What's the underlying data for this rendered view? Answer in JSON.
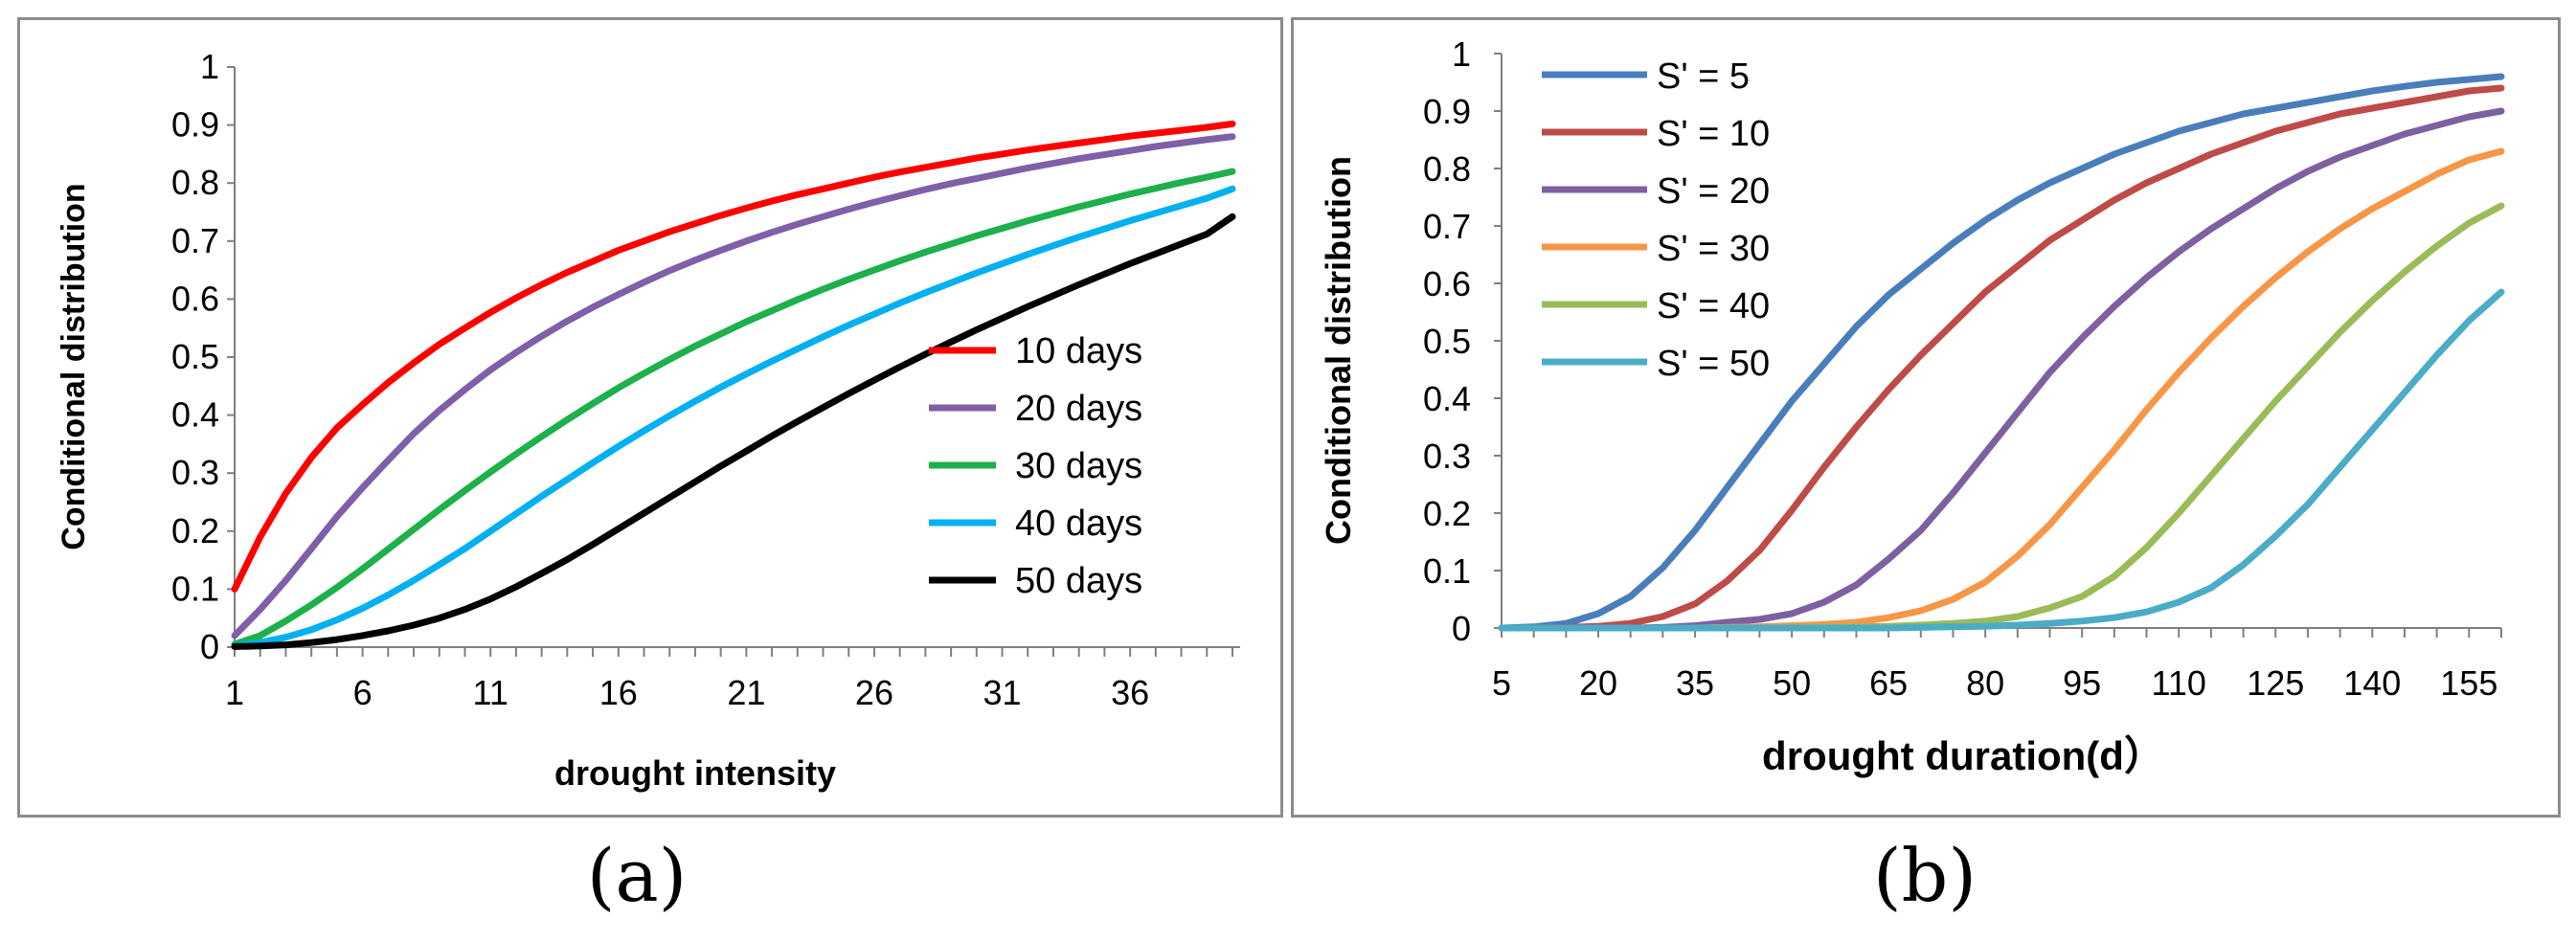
{
  "chart_data": [
    {
      "type": "line",
      "panel_label": "(a)",
      "title": "",
      "xlabel": "drought intensity",
      "ylabel": "Conditional distribution",
      "x": [
        1,
        2,
        3,
        4,
        5,
        6,
        7,
        8,
        9,
        10,
        11,
        12,
        13,
        14,
        15,
        16,
        17,
        18,
        19,
        20,
        21,
        22,
        23,
        24,
        25,
        26,
        27,
        28,
        29,
        30,
        31,
        32,
        33,
        34,
        35,
        36,
        37,
        38,
        39,
        40
      ],
      "x_tick_labels": [
        "1",
        "6",
        "11",
        "16",
        "21",
        "26",
        "31",
        "36"
      ],
      "xlim": [
        1,
        40
      ],
      "ylim": [
        0,
        1
      ],
      "y_tick_labels": [
        "0",
        "0.1",
        "0.2",
        "0.3",
        "0.4",
        "0.5",
        "0.6",
        "0.7",
        "0.8",
        "0.9",
        "1"
      ],
      "legend_position": "bottom-right",
      "series": [
        {
          "name": "10 days",
          "color": "#ff0000",
          "values": [
            0.1,
            0.19,
            0.265,
            0.327,
            0.378,
            0.418,
            0.456,
            0.49,
            0.522,
            0.55,
            0.577,
            0.602,
            0.625,
            0.646,
            0.665,
            0.684,
            0.7,
            0.716,
            0.73,
            0.744,
            0.757,
            0.769,
            0.78,
            0.79,
            0.8,
            0.81,
            0.819,
            0.827,
            0.835,
            0.843,
            0.85,
            0.857,
            0.863,
            0.869,
            0.875,
            0.881,
            0.886,
            0.891,
            0.896,
            0.902
          ]
        },
        {
          "name": "20 days",
          "color": "#7f5fa8",
          "values": [
            0.02,
            0.065,
            0.115,
            0.17,
            0.225,
            0.275,
            0.322,
            0.368,
            0.408,
            0.444,
            0.478,
            0.508,
            0.536,
            0.562,
            0.586,
            0.608,
            0.629,
            0.649,
            0.667,
            0.684,
            0.7,
            0.715,
            0.729,
            0.742,
            0.755,
            0.767,
            0.778,
            0.789,
            0.799,
            0.808,
            0.817,
            0.826,
            0.834,
            0.842,
            0.849,
            0.856,
            0.863,
            0.869,
            0.875,
            0.88
          ]
        },
        {
          "name": "30 days",
          "color": "#1db04b",
          "values": [
            0.005,
            0.02,
            0.045,
            0.073,
            0.103,
            0.135,
            0.169,
            0.203,
            0.237,
            0.27,
            0.302,
            0.333,
            0.363,
            0.392,
            0.42,
            0.447,
            0.472,
            0.496,
            0.519,
            0.54,
            0.561,
            0.58,
            0.599,
            0.617,
            0.634,
            0.65,
            0.666,
            0.681,
            0.695,
            0.709,
            0.722,
            0.735,
            0.747,
            0.759,
            0.77,
            0.781,
            0.791,
            0.801,
            0.81,
            0.82
          ]
        },
        {
          "name": "40 days",
          "color": "#00b0f0",
          "values": [
            0.002,
            0.008,
            0.017,
            0.03,
            0.047,
            0.067,
            0.09,
            0.115,
            0.142,
            0.17,
            0.2,
            0.23,
            0.26,
            0.289,
            0.318,
            0.346,
            0.373,
            0.399,
            0.424,
            0.448,
            0.471,
            0.493,
            0.514,
            0.535,
            0.555,
            0.574,
            0.593,
            0.611,
            0.628,
            0.645,
            0.661,
            0.677,
            0.692,
            0.707,
            0.721,
            0.735,
            0.748,
            0.761,
            0.774,
            0.79
          ]
        },
        {
          "name": "50 days",
          "color": "#000000",
          "values": [
            0.001,
            0.002,
            0.004,
            0.008,
            0.013,
            0.02,
            0.028,
            0.038,
            0.05,
            0.065,
            0.083,
            0.104,
            0.127,
            0.151,
            0.177,
            0.204,
            0.231,
            0.258,
            0.285,
            0.312,
            0.338,
            0.364,
            0.389,
            0.413,
            0.437,
            0.46,
            0.483,
            0.505,
            0.526,
            0.547,
            0.567,
            0.587,
            0.606,
            0.625,
            0.643,
            0.661,
            0.678,
            0.695,
            0.712,
            0.742
          ]
        }
      ]
    },
    {
      "type": "line",
      "panel_label": "(b)",
      "title": "",
      "xlabel": "drought duration(d）",
      "ylabel": "Conditional distribution",
      "x": [
        5,
        10,
        15,
        20,
        25,
        30,
        35,
        40,
        45,
        50,
        55,
        60,
        65,
        70,
        75,
        80,
        85,
        90,
        95,
        100,
        105,
        110,
        115,
        120,
        125,
        130,
        135,
        140,
        145,
        150,
        155,
        160
      ],
      "x_tick_labels": [
        "5",
        "20",
        "35",
        "50",
        "65",
        "80",
        "95",
        "110",
        "125",
        "140",
        "155"
      ],
      "x_tick_values": [
        5,
        20,
        35,
        50,
        65,
        80,
        95,
        110,
        125,
        140,
        155
      ],
      "xlim": [
        5,
        160
      ],
      "ylim": [
        0,
        1
      ],
      "y_tick_labels": [
        "0",
        "0.1",
        "0.2",
        "0.3",
        "0.4",
        "0.5",
        "0.6",
        "0.7",
        "0.8",
        "0.9",
        "1"
      ],
      "legend_position": "top-left",
      "series": [
        {
          "name": "S' = 5",
          "color": "#4a7ebb",
          "values": [
            0,
            0.002,
            0.008,
            0.025,
            0.055,
            0.105,
            0.17,
            0.245,
            0.32,
            0.395,
            0.46,
            0.525,
            0.58,
            0.625,
            0.67,
            0.71,
            0.745,
            0.775,
            0.8,
            0.825,
            0.845,
            0.865,
            0.88,
            0.895,
            0.905,
            0.915,
            0.925,
            0.935,
            0.943,
            0.95,
            0.955,
            0.96
          ]
        },
        {
          "name": "S' = 10",
          "color": "#be4b48",
          "values": [
            0,
            0,
            0.001,
            0.003,
            0.008,
            0.02,
            0.042,
            0.082,
            0.135,
            0.205,
            0.28,
            0.35,
            0.415,
            0.475,
            0.53,
            0.585,
            0.63,
            0.675,
            0.71,
            0.745,
            0.775,
            0.8,
            0.825,
            0.845,
            0.865,
            0.88,
            0.895,
            0.905,
            0.915,
            0.925,
            0.935,
            0.94
          ]
        },
        {
          "name": "S' = 20",
          "color": "#7d60a0",
          "values": [
            0,
            0,
            0,
            0,
            0,
            0.001,
            0.004,
            0.01,
            0.015,
            0.025,
            0.045,
            0.075,
            0.12,
            0.17,
            0.235,
            0.305,
            0.375,
            0.445,
            0.505,
            0.56,
            0.61,
            0.655,
            0.695,
            0.73,
            0.765,
            0.795,
            0.82,
            0.84,
            0.86,
            0.875,
            0.89,
            0.9
          ]
        },
        {
          "name": "S' = 30",
          "color": "#f79646",
          "values": [
            0,
            0,
            0,
            0,
            0,
            0,
            0,
            0.001,
            0.002,
            0.004,
            0.006,
            0.01,
            0.018,
            0.03,
            0.05,
            0.08,
            0.125,
            0.18,
            0.245,
            0.31,
            0.38,
            0.445,
            0.505,
            0.56,
            0.61,
            0.655,
            0.695,
            0.73,
            0.76,
            0.79,
            0.815,
            0.83
          ]
        },
        {
          "name": "S' = 40",
          "color": "#9bbb59",
          "values": [
            0,
            0,
            0,
            0,
            0,
            0,
            0,
            0,
            0,
            0,
            0.001,
            0.002,
            0.003,
            0.005,
            0.008,
            0.012,
            0.02,
            0.035,
            0.055,
            0.09,
            0.14,
            0.2,
            0.265,
            0.33,
            0.395,
            0.455,
            0.515,
            0.57,
            0.62,
            0.665,
            0.705,
            0.735
          ]
        },
        {
          "name": "S' = 50",
          "color": "#4bacc6",
          "values": [
            0,
            0,
            0,
            0,
            0,
            0,
            0,
            0,
            0,
            0,
            0,
            0,
            0,
            0.001,
            0.002,
            0.003,
            0.005,
            0.008,
            0.012,
            0.018,
            0.028,
            0.045,
            0.07,
            0.11,
            0.16,
            0.215,
            0.28,
            0.345,
            0.41,
            0.475,
            0.535,
            0.585
          ]
        }
      ]
    }
  ]
}
